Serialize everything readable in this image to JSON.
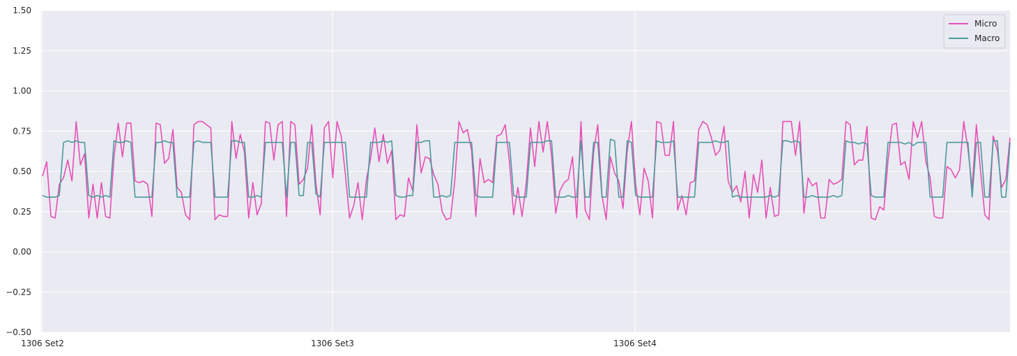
{
  "chart_data": {
    "type": "line",
    "title": "",
    "xlabel": "",
    "ylabel": "",
    "ylim": [
      -0.5,
      1.5
    ],
    "yticks": [
      -0.5,
      -0.25,
      0.0,
      0.25,
      0.5,
      0.75,
      1.0,
      1.25,
      1.5
    ],
    "ytick_labels": [
      "−0.50",
      "−0.25",
      "0.00",
      "0.25",
      "0.50",
      "0.75",
      "1.00",
      "1.25",
      "1.50"
    ],
    "xtick_labels": [
      "1306 Set2",
      "1306 Set3",
      "1306 Set4"
    ],
    "grid": true,
    "legend_position": "top-right",
    "colors": {
      "background": "#eaeaf2",
      "grid": "#ffffff",
      "micro": "#e64fb4",
      "macro": "#4a9a9a"
    },
    "series": [
      {
        "name": "Micro",
        "values": [
          0.47,
          0.56,
          0.22,
          0.21,
          0.42,
          0.46,
          0.57,
          0.44,
          0.81,
          0.54,
          0.61,
          0.21,
          0.42,
          0.21,
          0.43,
          0.22,
          0.21,
          0.59,
          0.8,
          0.59,
          0.8,
          0.8,
          0.44,
          0.43,
          0.44,
          0.42,
          0.22,
          0.8,
          0.79,
          0.55,
          0.58,
          0.76,
          0.4,
          0.37,
          0.23,
          0.2,
          0.79,
          0.81,
          0.81,
          0.79,
          0.77,
          0.2,
          0.23,
          0.22,
          0.22,
          0.81,
          0.58,
          0.73,
          0.62,
          0.21,
          0.43,
          0.23,
          0.3,
          0.81,
          0.8,
          0.57,
          0.79,
          0.81,
          0.22,
          0.81,
          0.79,
          0.42,
          0.45,
          0.52,
          0.79,
          0.42,
          0.23,
          0.77,
          0.81,
          0.46,
          0.81,
          0.72,
          0.48,
          0.21,
          0.29,
          0.43,
          0.2,
          0.45,
          0.58,
          0.77,
          0.56,
          0.73,
          0.55,
          0.63,
          0.2,
          0.23,
          0.22,
          0.46,
          0.38,
          0.79,
          0.49,
          0.59,
          0.58,
          0.48,
          0.42,
          0.25,
          0.2,
          0.21,
          0.44,
          0.81,
          0.74,
          0.76,
          0.63,
          0.22,
          0.58,
          0.43,
          0.45,
          0.43,
          0.72,
          0.73,
          0.79,
          0.56,
          0.23,
          0.4,
          0.22,
          0.43,
          0.77,
          0.53,
          0.81,
          0.62,
          0.81,
          0.6,
          0.24,
          0.38,
          0.43,
          0.45,
          0.59,
          0.21,
          0.81,
          0.26,
          0.2,
          0.62,
          0.79,
          0.35,
          0.2,
          0.59,
          0.49,
          0.44,
          0.27,
          0.63,
          0.81,
          0.42,
          0.23,
          0.52,
          0.44,
          0.21,
          0.81,
          0.8,
          0.6,
          0.6,
          0.81,
          0.26,
          0.35,
          0.23,
          0.43,
          0.44,
          0.76,
          0.81,
          0.79,
          0.71,
          0.6,
          0.63,
          0.78,
          0.44,
          0.37,
          0.41,
          0.31,
          0.5,
          0.21,
          0.48,
          0.37,
          0.57,
          0.21,
          0.4,
          0.22,
          0.23,
          0.81,
          0.81,
          0.81,
          0.6,
          0.81,
          0.24,
          0.46,
          0.41,
          0.43,
          0.21,
          0.21,
          0.45,
          0.42,
          0.43,
          0.45,
          0.81,
          0.79,
          0.54,
          0.57,
          0.57,
          0.78,
          0.21,
          0.2,
          0.28,
          0.26,
          0.57,
          0.79,
          0.8,
          0.54,
          0.56,
          0.45,
          0.81,
          0.71,
          0.81,
          0.56,
          0.46,
          0.22,
          0.21,
          0.21,
          0.53,
          0.51,
          0.46,
          0.51,
          0.81,
          0.64,
          0.4,
          0.79,
          0.5,
          0.23,
          0.2,
          0.72,
          0.63,
          0.4,
          0.45,
          0.71
        ]
      },
      {
        "name": "Macro",
        "values": [
          0.35,
          0.34,
          0.34,
          0.34,
          0.35,
          0.68,
          0.69,
          0.68,
          0.69,
          0.68,
          0.68,
          0.35,
          0.34,
          0.35,
          0.34,
          0.35,
          0.34,
          0.69,
          0.68,
          0.68,
          0.69,
          0.68,
          0.34,
          0.34,
          0.34,
          0.34,
          0.34,
          0.68,
          0.68,
          0.69,
          0.68,
          0.68,
          0.34,
          0.34,
          0.34,
          0.34,
          0.68,
          0.69,
          0.68,
          0.68,
          0.68,
          0.34,
          0.34,
          0.34,
          0.34,
          0.69,
          0.69,
          0.68,
          0.68,
          0.34,
          0.34,
          0.35,
          0.34,
          0.68,
          0.68,
          0.68,
          0.68,
          0.68,
          0.34,
          0.68,
          0.68,
          0.35,
          0.35,
          0.68,
          0.68,
          0.36,
          0.34,
          0.68,
          0.68,
          0.68,
          0.68,
          0.68,
          0.68,
          0.34,
          0.34,
          0.34,
          0.34,
          0.34,
          0.68,
          0.68,
          0.68,
          0.69,
          0.68,
          0.69,
          0.35,
          0.34,
          0.34,
          0.35,
          0.35,
          0.68,
          0.68,
          0.69,
          0.69,
          0.34,
          0.34,
          0.35,
          0.34,
          0.35,
          0.68,
          0.68,
          0.68,
          0.68,
          0.68,
          0.35,
          0.34,
          0.34,
          0.34,
          0.34,
          0.68,
          0.68,
          0.68,
          0.68,
          0.35,
          0.34,
          0.34,
          0.34,
          0.68,
          0.68,
          0.68,
          0.68,
          0.69,
          0.69,
          0.34,
          0.34,
          0.34,
          0.35,
          0.34,
          0.34,
          0.69,
          0.34,
          0.34,
          0.68,
          0.68,
          0.34,
          0.34,
          0.7,
          0.69,
          0.34,
          0.34,
          0.69,
          0.68,
          0.35,
          0.34,
          0.34,
          0.34,
          0.34,
          0.69,
          0.68,
          0.68,
          0.68,
          0.69,
          0.34,
          0.34,
          0.34,
          0.34,
          0.34,
          0.68,
          0.68,
          0.68,
          0.68,
          0.69,
          0.68,
          0.68,
          0.69,
          0.34,
          0.35,
          0.34,
          0.34,
          0.34,
          0.34,
          0.34,
          0.34,
          0.34,
          0.35,
          0.34,
          0.35,
          0.69,
          0.69,
          0.68,
          0.69,
          0.68,
          0.34,
          0.34,
          0.35,
          0.34,
          0.34,
          0.34,
          0.34,
          0.35,
          0.34,
          0.35,
          0.69,
          0.68,
          0.68,
          0.67,
          0.68,
          0.67,
          0.35,
          0.34,
          0.34,
          0.34,
          0.68,
          0.68,
          0.68,
          0.68,
          0.67,
          0.68,
          0.66,
          0.68,
          0.68,
          0.68,
          0.34,
          0.34,
          0.34,
          0.34,
          0.68,
          0.68,
          0.68,
          0.68,
          0.68,
          0.68,
          0.34,
          0.68,
          0.68,
          0.34,
          0.34,
          0.69,
          0.69,
          0.34,
          0.34,
          0.68
        ]
      }
    ]
  }
}
